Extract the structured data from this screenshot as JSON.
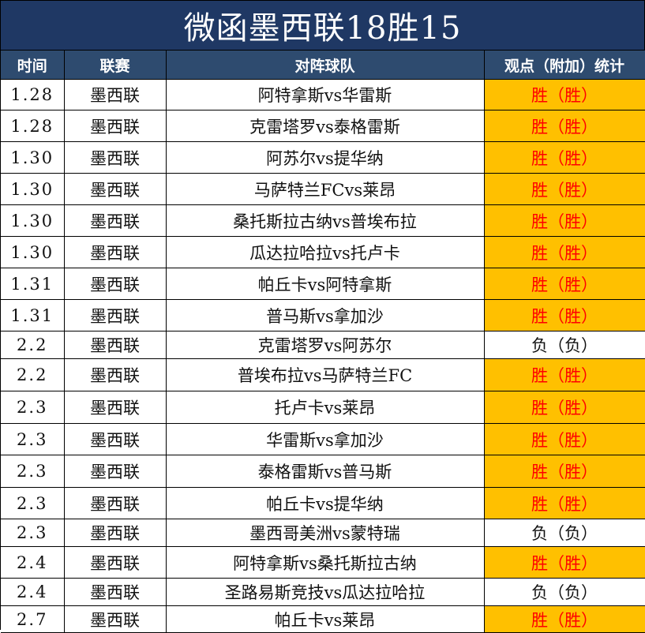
{
  "title": "微函墨西联18胜15",
  "headers": {
    "time": "时间",
    "league": "联赛",
    "match": "对阵球队",
    "result": "观点（附加）统计"
  },
  "rows": [
    {
      "date": "1.28",
      "league": "墨西联",
      "match": "阿特拿斯vs华雷斯",
      "result": "胜（胜）",
      "win": true
    },
    {
      "date": "1.28",
      "league": "墨西联",
      "match": "克雷塔罗vs泰格雷斯",
      "result": "胜（胜）",
      "win": true
    },
    {
      "date": "1.30",
      "league": "墨西联",
      "match": "阿苏尔vs提华纳",
      "result": "胜（胜）",
      "win": true
    },
    {
      "date": "1.30",
      "league": "墨西联",
      "match": "马萨特兰FCvs莱昂",
      "result": "胜（胜）",
      "win": true
    },
    {
      "date": "1.30",
      "league": "墨西联",
      "match": "桑托斯拉古纳vs普埃布拉",
      "result": "胜（胜）",
      "win": true
    },
    {
      "date": "1.30",
      "league": "墨西联",
      "match": "瓜达拉哈拉vs托卢卡",
      "result": "胜（胜）",
      "win": true
    },
    {
      "date": "1.31",
      "league": "墨西联",
      "match": "帕丘卡vs阿特拿斯",
      "result": "胜（胜）",
      "win": true
    },
    {
      "date": "1.31",
      "league": "墨西联",
      "match": "普马斯vs拿加沙",
      "result": "胜（胜）",
      "win": true
    },
    {
      "date": "2.2",
      "league": "墨西联",
      "match": "克雷塔罗vs阿苏尔",
      "result": "负（负）",
      "win": false
    },
    {
      "date": "2.2",
      "league": "墨西联",
      "match": "普埃布拉vs马萨特兰FC",
      "result": "胜（胜）",
      "win": true
    },
    {
      "date": "2.3",
      "league": "墨西联",
      "match": "托卢卡vs莱昂",
      "result": "胜（胜）",
      "win": true
    },
    {
      "date": "2.3",
      "league": "墨西联",
      "match": "华雷斯vs拿加沙",
      "result": "胜（胜）",
      "win": true
    },
    {
      "date": "2.3",
      "league": "墨西联",
      "match": "泰格雷斯vs普马斯",
      "result": "胜（胜）",
      "win": true
    },
    {
      "date": "2.3",
      "league": "墨西联",
      "match": "帕丘卡vs提华纳",
      "result": "胜（胜）",
      "win": true
    },
    {
      "date": "2.3",
      "league": "墨西联",
      "match": "墨西哥美洲vs蒙特瑞",
      "result": "负（负）",
      "win": false
    },
    {
      "date": "2.4",
      "league": "墨西联",
      "match": "阿特拿斯vs桑托斯拉古纳",
      "result": "胜（胜）",
      "win": true
    },
    {
      "date": "2.4",
      "league": "墨西联",
      "match": "圣路易斯竞技vs瓜达拉哈拉",
      "result": "负（负）",
      "win": false
    },
    {
      "date": "2.7",
      "league": "墨西联",
      "match": "帕丘卡vs莱昂",
      "result": "胜（胜）",
      "win": true
    }
  ],
  "colors": {
    "title_bg": "#1f3864",
    "header_bg": "#2e4b6f",
    "win_bg": "#ffc000",
    "win_text": "#ff0000"
  }
}
